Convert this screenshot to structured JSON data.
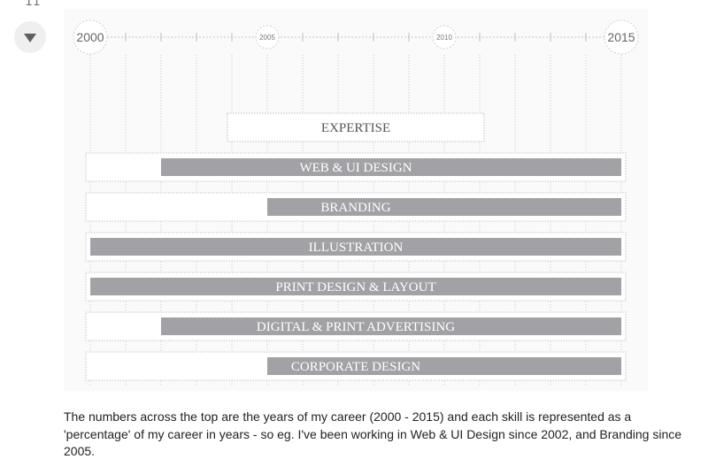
{
  "top_glyph": "11",
  "timeline": {
    "start_label": "2000",
    "mid_labels": [
      "2005",
      "2010"
    ],
    "end_label": "2015",
    "start_year": 2000,
    "end_year": 2015
  },
  "expertise_heading": "EXPERTISE",
  "skills": [
    {
      "label": "WEB & UI DESIGN",
      "since": 2002
    },
    {
      "label": "BRANDING",
      "since": 2005
    },
    {
      "label": "ILLUSTRATION",
      "since": 2000
    },
    {
      "label": "PRINT DESIGN & LAYOUT",
      "since": 2000
    },
    {
      "label": "DIGITAL & PRINT ADVERTISING",
      "since": 2002
    },
    {
      "label": "CORPORATE DESIGN",
      "since": 2005
    }
  ],
  "colors": {
    "bar": "#a2a2a6",
    "bar_text": "#ffffff",
    "label_text": "#555555",
    "dotted": "#c8c8c8"
  },
  "description": "The numbers across the top are the years of my career (2000 - 2015) and each skill is represented as a 'percentage' of my career in years - so eg. I've been working in Web & UI Design since 2002, and Branding since 2005."
}
